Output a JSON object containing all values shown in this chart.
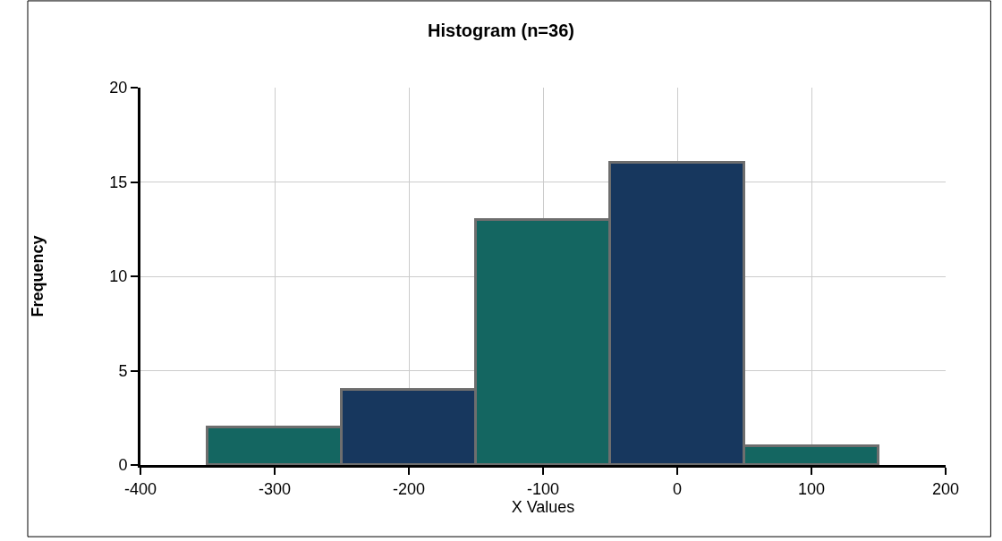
{
  "chart_data": {
    "type": "histogram",
    "title": "Histogram (n=36)",
    "xlabel": "X Values",
    "ylabel": "Frequency",
    "bins": [
      -350,
      -250,
      -150,
      -50,
      50,
      150
    ],
    "values": [
      2,
      4,
      13,
      16,
      1
    ],
    "colors": [
      "#146661",
      "#17375e",
      "#146661",
      "#17375e",
      "#146661"
    ],
    "xlim": [
      -400,
      200
    ],
    "xticks": [
      -400,
      -300,
      -200,
      -100,
      0,
      100,
      200
    ],
    "ylim": [
      0,
      20
    ],
    "yticks": [
      0,
      5,
      10,
      15,
      20
    ],
    "grid": true
  }
}
